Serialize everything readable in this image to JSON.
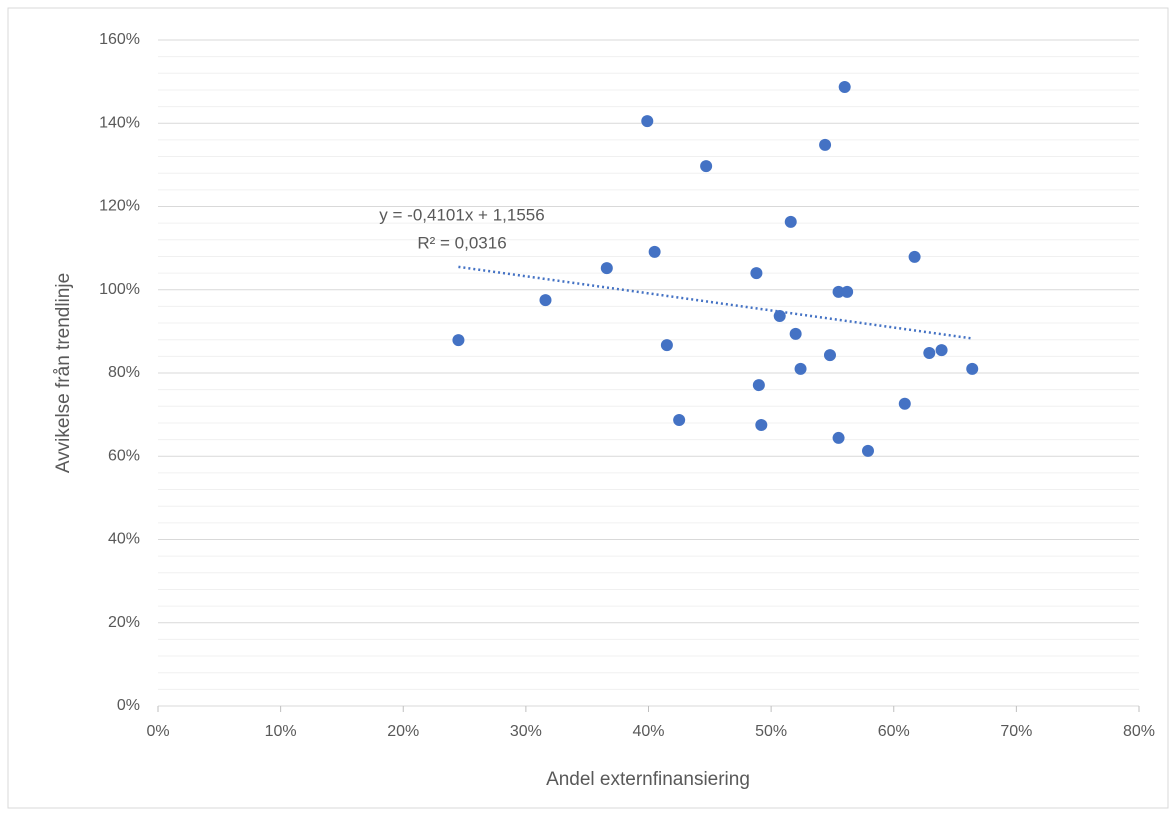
{
  "chart_data": {
    "type": "scatter",
    "x_label": "Andel externfinansiering",
    "y_label": "Avvikelse från trendlinje",
    "color": "#4472c4",
    "x": [
      24.5,
      31.6,
      36.6,
      39.9,
      40.5,
      41.5,
      42.5,
      44.7,
      48.8,
      49.0,
      49.2,
      50.7,
      51.6,
      52.0,
      52.4,
      54.4,
      54.8,
      55.5,
      55.5,
      56.0,
      56.2,
      57.9,
      60.9,
      61.7,
      62.9,
      63.9,
      66.4
    ],
    "values": [
      87.9,
      97.5,
      105.2,
      140.5,
      109.1,
      86.7,
      68.7,
      129.7,
      104.0,
      77.1,
      67.5,
      93.7,
      116.3,
      89.4,
      81.0,
      134.8,
      84.3,
      99.5,
      64.4,
      148.7,
      99.5,
      61.3,
      72.6,
      107.9,
      84.8,
      85.5,
      81.0
    ],
    "trendline": {
      "equation": "y = -0,4101x + 1,1556",
      "r_squared": "R² = 0,0316",
      "x": [
        24.5,
        66.4
      ],
      "values": [
        105.5,
        88.3
      ]
    },
    "xlim": [
      0,
      80
    ],
    "ylim": [
      0,
      160
    ],
    "xticks": [
      {
        "value": 0,
        "label": "0%"
      },
      {
        "value": 10,
        "label": "10%"
      },
      {
        "value": 20,
        "label": "20%"
      },
      {
        "value": 30,
        "label": "30%"
      },
      {
        "value": 40,
        "label": "40%"
      },
      {
        "value": 50,
        "label": "50%"
      },
      {
        "value": 60,
        "label": "60%"
      },
      {
        "value": 70,
        "label": "70%"
      },
      {
        "value": 80,
        "label": "80%"
      }
    ],
    "yticks": [
      {
        "value": 0,
        "label": "0%"
      },
      {
        "value": 20,
        "label": "20%"
      },
      {
        "value": 40,
        "label": "40%"
      },
      {
        "value": 60,
        "label": "60%"
      },
      {
        "value": 80,
        "label": "80%"
      },
      {
        "value": 100,
        "label": "100%"
      },
      {
        "value": 120,
        "label": "120%"
      },
      {
        "value": 140,
        "label": "140%"
      },
      {
        "value": 160,
        "label": "160%"
      }
    ],
    "y_minor_ticks": [
      4,
      8,
      12,
      16,
      24,
      28,
      32,
      36,
      44,
      48,
      52,
      56,
      64,
      68,
      72,
      76,
      84,
      88,
      92,
      96,
      104,
      108,
      112,
      116,
      124,
      128,
      132,
      136,
      144,
      148,
      152,
      156
    ],
    "grid": true
  }
}
